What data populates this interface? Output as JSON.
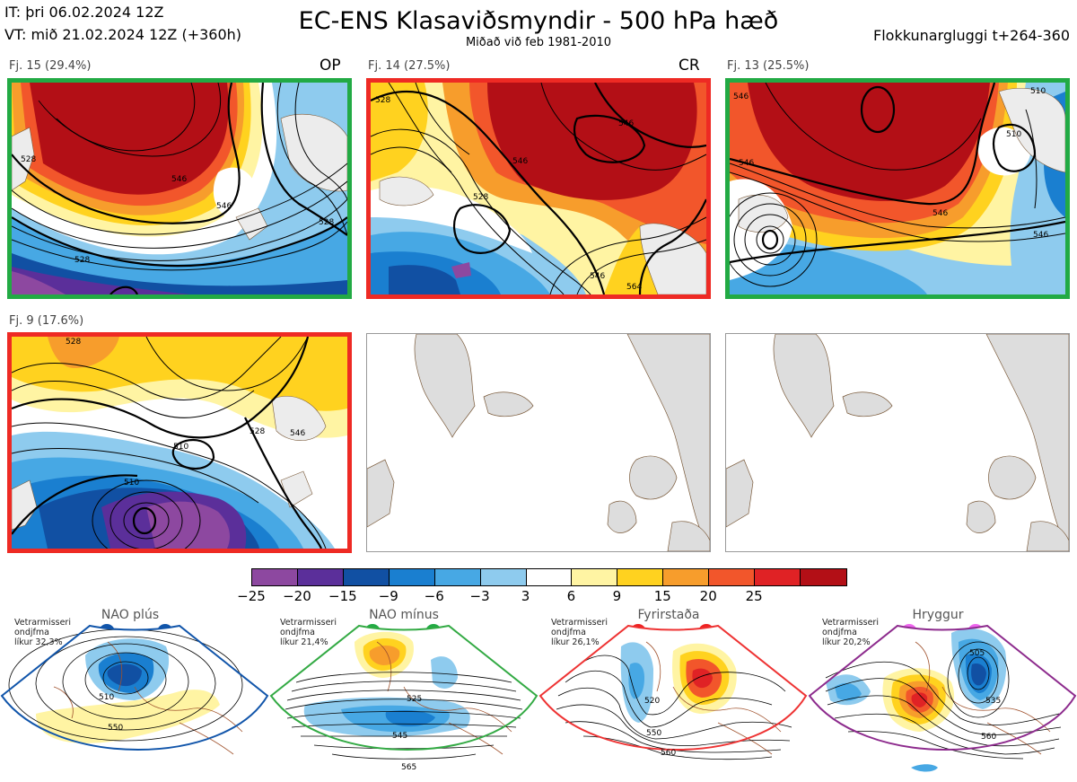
{
  "header": {
    "init_time": "IT: þri 06.02.2024 12Z",
    "valid_time": "VT: mið 21.02.2024 12Z  (+360h)",
    "title": "EC-ENS Klasaviðsmyndir - 500 hPa hæð",
    "subtitle": "Miðað við feb 1981-2010",
    "window": "Flokkunargluggi t+264-360"
  },
  "panels": [
    {
      "label": "Fj. 15 (29.4%)",
      "tag": "OP",
      "border": "#22aa44",
      "contours": [
        "528",
        "546",
        "528",
        "528",
        "546"
      ]
    },
    {
      "label": "Fj. 14 (27.5%)",
      "tag": "CR",
      "border": "#ee2a24",
      "contours": [
        "528",
        "546",
        "546",
        "528",
        "546",
        "564"
      ]
    },
    {
      "label": "Fj. 13 (25.5%)",
      "tag": "",
      "border": "#22aa44",
      "contours": [
        "546",
        "546",
        "546",
        "510",
        "546",
        "510"
      ]
    },
    {
      "label": "Fj. 9 (17.6%)",
      "tag": "",
      "border": "#ee2a24",
      "contours": [
        "528",
        "510",
        "510",
        "546",
        "528"
      ]
    },
    {
      "label": "",
      "tag": "",
      "border": "",
      "contours": []
    },
    {
      "label": "",
      "tag": "",
      "border": "",
      "contours": []
    }
  ],
  "colorbar": {
    "colors": [
      "#8d48a0",
      "#5b2f9a",
      "#1150a3",
      "#1a7fd0",
      "#47a8e4",
      "#8ecbee",
      "#ffffff",
      "#fff4a3",
      "#ffd21f",
      "#f79d2c",
      "#f2562b",
      "#e02225",
      "#b30f16"
    ],
    "labels": [
      "−25",
      "−20",
      "−15",
      "−9",
      "−6",
      "−3",
      "3",
      "6",
      "9",
      "15",
      "20",
      "25"
    ]
  },
  "regimes": [
    {
      "name": "NAO plús",
      "note": [
        "Vetrarmisseri",
        "ondjfma",
        "líkur 32,3%"
      ],
      "color": "#1155aa",
      "dot": "#1155aa",
      "contours": [
        "510",
        "550"
      ]
    },
    {
      "name": "NAO mínus",
      "note": [
        "Vetrarmisseri",
        "ondjfma",
        "líkur 21,4%"
      ],
      "color": "#33aa44",
      "dot": "#22aa44",
      "contours": [
        "525",
        "545",
        "565"
      ]
    },
    {
      "name": "Fyrirstaða",
      "note": [
        "Vetrarmisseri",
        "ondjfma",
        "líkur 26,1%"
      ],
      "color": "#ee3333",
      "dot": "#ee2222",
      "contours": [
        "520",
        "550",
        "560"
      ]
    },
    {
      "name": "Hryggur",
      "note": [
        "Vetrarmisseri",
        "ondjfma",
        "líkur 20,2%"
      ],
      "color": "#8d2b8d",
      "dot": "#ee66ee",
      "contours": [
        "505",
        "535",
        "560"
      ]
    }
  ]
}
